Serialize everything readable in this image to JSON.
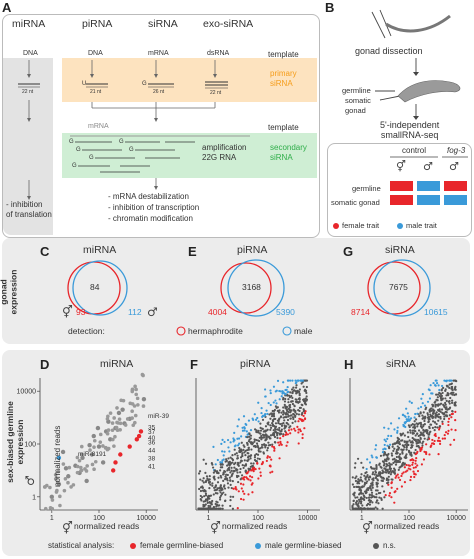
{
  "colors": {
    "female": "#e8262b",
    "male": "#3a9ad9",
    "ns": "#555555",
    "primary_bg": "#fde3bf",
    "secondary_bg": "#cfeed4",
    "panel_bg": "#ececec",
    "mirna_col_bg": "#e3e3e3",
    "primary_text": "#f59d1a",
    "secondary_text": "#2fae4a"
  },
  "panelA": {
    "letter": "A",
    "columns": [
      "miRNA",
      "piRNA",
      "siRNA",
      "exo-siRNA"
    ],
    "template_label": "template",
    "template_label2": "template",
    "primary_label": "primary\nsiRNA",
    "secondary_label": "secondary\nsiRNA",
    "dna_label": "DNA",
    "pi_dna_label": "DNA",
    "mrna_label": "mRNA",
    "dsrna_label": "dsRNA",
    "mirna_nt": "22 nt",
    "pirna_u": "U",
    "pirna_nt": "21 nt",
    "sirna_g": "G",
    "sirna_nt": "26 nt",
    "exo_nt": "22 nt",
    "secondary_mrna": "mRNA",
    "amplification": "amplification\n22G RNA",
    "mirna_effect": "- inhibition\nof translation",
    "effects": [
      "- mRNA destabilization",
      "- inhibition of transcription",
      "- chromatin modification"
    ]
  },
  "panelB": {
    "letter": "B",
    "gonad_dissection": "gonad dissection",
    "germline": "germline",
    "somatic_gonad": "somatic\ngonad",
    "seq": "5'-independent\nsmallRNA-seq",
    "control": "control",
    "fog3": "fog-3",
    "row_germline": "germline",
    "row_somatic": "somatic gonad",
    "female_trait": "female trait",
    "male_trait": "male trait",
    "grid": [
      [
        "female",
        "male",
        "female"
      ],
      [
        "female",
        "male",
        "male"
      ]
    ]
  },
  "gonad": {
    "side_label": "gonad\nexpression",
    "detection": "detection:",
    "hermaphrodite": "hermaphrodite",
    "male": "male",
    "venns": [
      {
        "letter": "C",
        "title": "miRNA",
        "herm_only": "93",
        "overlap": "84",
        "male_only": "112"
      },
      {
        "letter": "E",
        "title": "piRNA",
        "herm_only": "4004",
        "overlap": "3168",
        "male_only": "5390"
      },
      {
        "letter": "G",
        "title": "siRNA",
        "herm_only": "8714",
        "overlap": "7675",
        "male_only": "10615"
      }
    ]
  },
  "biased": {
    "side_label": "sex-biased germline\nexpression",
    "ylabel": "normalized reads",
    "xlabel": "normalized reads",
    "stat_label": "statistical analysis:",
    "legend": [
      "female germline-biased",
      "male germline-biased",
      "n.s."
    ]
  },
  "chart_data": [
    {
      "type": "scatter",
      "id": "D",
      "title": "miRNA",
      "xscale": "log",
      "yscale": "log",
      "xticks": [
        "1",
        "100",
        "10000"
      ],
      "yticks": [
        "1",
        "100",
        "10000"
      ],
      "xlabel": "normalized reads",
      "ylabel": "normalized reads",
      "annotations": [
        {
          "text": "miR-8191",
          "x": 2,
          "y": 30
        },
        {
          "text": "miR-39",
          "x": 6000,
          "y": 800
        },
        {
          "text": "35",
          "x": 5000,
          "y": 300
        },
        {
          "text": "37",
          "x": 5000,
          "y": 200
        },
        {
          "text": "40",
          "x": 4000,
          "y": 120
        },
        {
          "text": "36",
          "x": 2000,
          "y": 80
        },
        {
          "text": "44",
          "x": 800,
          "y": 40
        },
        {
          "text": "38",
          "x": 500,
          "y": 20
        },
        {
          "text": "41",
          "x": 400,
          "y": 10
        }
      ],
      "series": [
        {
          "name": "n.s.",
          "points": [
            [
              1,
              1
            ],
            [
              2,
              3
            ],
            [
              5,
              6
            ],
            [
              10,
              15
            ],
            [
              20,
              30
            ],
            [
              50,
              40
            ],
            [
              100,
              80
            ],
            [
              200,
              300
            ],
            [
              500,
              400
            ],
            [
              1000,
              2000
            ],
            [
              3,
              50
            ],
            [
              30,
              4
            ],
            [
              60,
              200
            ],
            [
              300,
              150
            ],
            [
              2000,
              900
            ],
            [
              8000,
              5000
            ],
            [
              150,
              20
            ],
            [
              40,
              90
            ],
            [
              700,
              1500
            ],
            [
              1200,
              600
            ],
            [
              15,
              8
            ],
            [
              4,
              12
            ],
            [
              90,
              400
            ],
            [
              250,
              700
            ]
          ]
        },
        {
          "name": "female germline-biased",
          "points": [
            [
              2000,
              80
            ],
            [
              4000,
              150
            ],
            [
              6000,
              300
            ],
            [
              5000,
              200
            ],
            [
              800,
              40
            ],
            [
              500,
              20
            ],
            [
              400,
              10
            ]
          ]
        },
        {
          "name": "male germline-biased",
          "points": [
            [
              2,
              30
            ]
          ]
        }
      ]
    },
    {
      "type": "scatter",
      "id": "F",
      "title": "piRNA",
      "xscale": "log",
      "yscale": "log",
      "xticks": [
        "1",
        "100",
        "10000"
      ],
      "yticks": [],
      "xlabel": "normalized reads",
      "series": [
        {
          "name": "n.s.",
          "summary": "dense cloud along diagonal"
        },
        {
          "name": "female germline-biased",
          "summary": "below diagonal"
        },
        {
          "name": "male germline-biased",
          "summary": "above diagonal"
        }
      ]
    },
    {
      "type": "scatter",
      "id": "H",
      "title": "siRNA",
      "xscale": "log",
      "yscale": "log",
      "xticks": [
        "1",
        "100",
        "10000"
      ],
      "yticks": [],
      "xlabel": "normalized reads",
      "series": [
        {
          "name": "n.s.",
          "summary": "dense cloud along diagonal"
        },
        {
          "name": "female germline-biased",
          "summary": "below diagonal"
        },
        {
          "name": "male germline-biased",
          "summary": "above diagonal"
        }
      ]
    }
  ]
}
